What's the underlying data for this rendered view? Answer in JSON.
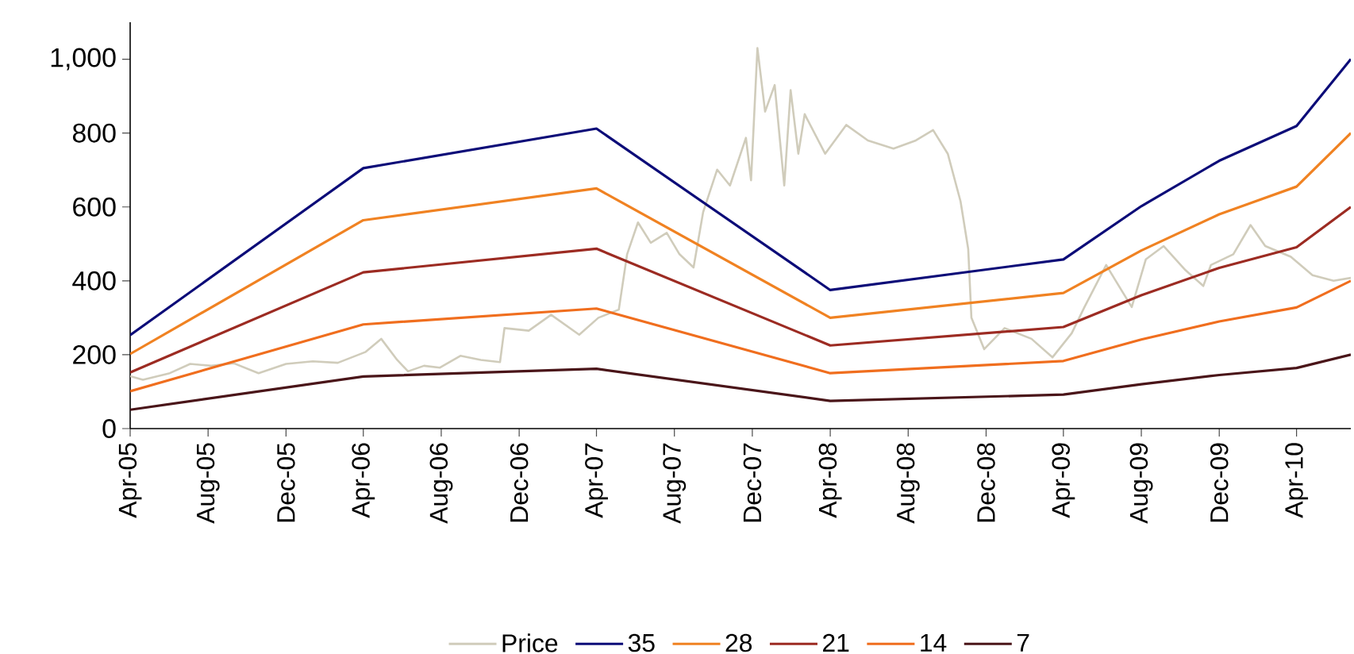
{
  "chart_data": {
    "type": "line",
    "xlim": [
      "2005-04-01",
      "2010-06-25"
    ],
    "xticks": [
      {
        "value": "2005-04-01",
        "label": "Apr-05"
      },
      {
        "value": "2005-08-01",
        "label": "Aug-05"
      },
      {
        "value": "2005-12-01",
        "label": "Dec-05"
      },
      {
        "value": "2006-04-01",
        "label": "Apr-06"
      },
      {
        "value": "2006-08-01",
        "label": "Aug-06"
      },
      {
        "value": "2006-12-01",
        "label": "Dec-06"
      },
      {
        "value": "2007-04-01",
        "label": "Apr-07"
      },
      {
        "value": "2007-08-01",
        "label": "Aug-07"
      },
      {
        "value": "2007-12-01",
        "label": "Dec-07"
      },
      {
        "value": "2008-04-01",
        "label": "Apr-08"
      },
      {
        "value": "2008-08-01",
        "label": "Aug-08"
      },
      {
        "value": "2008-12-01",
        "label": "Dec-08"
      },
      {
        "value": "2009-04-01",
        "label": "Apr-09"
      },
      {
        "value": "2009-08-01",
        "label": "Aug-09"
      },
      {
        "value": "2009-12-01",
        "label": "Dec-09"
      },
      {
        "value": "2010-04-01",
        "label": "Apr-10"
      }
    ],
    "ylim": [
      0,
      1100
    ],
    "yticks": [
      0,
      200,
      400,
      600,
      800,
      {
        "value": 1000,
        "label": "1,000"
      }
    ],
    "legend": "bottom",
    "series": [
      {
        "name": "Price",
        "color": "#d0ccbb",
        "x": [
          "2005-04-01",
          "2005-04-21",
          "2005-06-02",
          "2005-07-04",
          "2005-08-06",
          "2005-09-10",
          "2005-10-19",
          "2005-12-01",
          "2006-01-12",
          "2006-02-20",
          "2006-04-04",
          "2006-04-29",
          "2006-05-24",
          "2006-06-10",
          "2006-07-05",
          "2006-07-30",
          "2006-08-31",
          "2006-10-02",
          "2006-11-01",
          "2006-11-08",
          "2006-12-16",
          "2007-01-20",
          "2007-03-05",
          "2007-04-04",
          "2007-05-06",
          "2007-05-19",
          "2007-06-05",
          "2007-06-25",
          "2007-07-20",
          "2007-08-09",
          "2007-08-31",
          "2007-09-15",
          "2007-10-07",
          "2007-10-27",
          "2007-11-21",
          "2007-11-29",
          "2007-12-09",
          "2007-12-21",
          "2008-01-05",
          "2008-01-20",
          "2008-01-30",
          "2008-02-11",
          "2008-02-21",
          "2008-03-24",
          "2008-04-26",
          "2008-05-30",
          "2008-07-09",
          "2008-08-13",
          "2008-09-09",
          "2008-10-02",
          "2008-10-22",
          "2008-11-03",
          "2008-11-08",
          "2008-11-28",
          "2008-12-30",
          "2009-02-10",
          "2009-03-15",
          "2009-04-14",
          "2009-05-04",
          "2009-06-07",
          "2009-06-22",
          "2009-07-17",
          "2009-08-08",
          "2009-09-05",
          "2009-10-09",
          "2009-11-06",
          "2009-11-18",
          "2009-12-23",
          "2010-01-19",
          "2010-02-11",
          "2010-03-23",
          "2010-04-26",
          "2010-05-29",
          "2010-06-25"
        ],
        "values": [
          142,
          132,
          150,
          175,
          170,
          177,
          150,
          175,
          182,
          178,
          207,
          243,
          186,
          155,
          170,
          165,
          197,
          186,
          180,
          272,
          265,
          308,
          254,
          300,
          322,
          472,
          558,
          503,
          530,
          472,
          436,
          586,
          701,
          658,
          787,
          672,
          1030,
          858,
          930,
          658,
          916,
          744,
          851,
          744,
          822,
          780,
          758,
          780,
          808,
          744,
          615,
          486,
          300,
          215,
          272,
          243,
          193,
          258,
          329,
          443,
          400,
          329,
          458,
          494,
          429,
          386,
          443,
          472,
          551,
          494,
          465,
          415,
          400,
          408
        ]
      },
      {
        "name": "35",
        "color": "#0c0c78",
        "x": [
          "2005-04-01",
          "2006-04-01",
          "2007-04-01",
          "2008-04-01",
          "2009-04-01",
          "2009-08-01",
          "2009-12-01",
          "2010-04-01",
          "2010-06-25"
        ],
        "values": [
          253,
          705,
          812,
          375,
          458,
          602,
          725,
          819,
          1000
        ]
      },
      {
        "name": "28",
        "color": "#f08222",
        "x": [
          "2005-04-01",
          "2006-04-01",
          "2007-04-01",
          "2008-04-01",
          "2009-04-01",
          "2009-08-01",
          "2009-12-01",
          "2010-04-01",
          "2010-06-25"
        ],
        "values": [
          202,
          564,
          650,
          300,
          367,
          482,
          580,
          655,
          800
        ]
      },
      {
        "name": "21",
        "color": "#9c2b22",
        "x": [
          "2005-04-01",
          "2006-04-01",
          "2007-04-01",
          "2008-04-01",
          "2009-04-01",
          "2009-08-01",
          "2009-12-01",
          "2010-04-01",
          "2010-06-25"
        ],
        "values": [
          152,
          423,
          487,
          225,
          275,
          361,
          435,
          491,
          600
        ]
      },
      {
        "name": "14",
        "color": "#f06e1e",
        "x": [
          "2005-04-01",
          "2006-04-01",
          "2007-04-01",
          "2008-04-01",
          "2009-04-01",
          "2009-08-01",
          "2009-12-01",
          "2010-04-01",
          "2010-06-25"
        ],
        "values": [
          101,
          282,
          325,
          150,
          183,
          241,
          290,
          328,
          400
        ]
      },
      {
        "name": "7",
        "color": "#4a1519",
        "x": [
          "2005-04-01",
          "2006-04-01",
          "2007-04-01",
          "2008-04-01",
          "2009-04-01",
          "2009-08-01",
          "2009-12-01",
          "2010-04-01",
          "2010-06-25"
        ],
        "values": [
          51,
          141,
          162,
          75,
          92,
          120,
          145,
          164,
          200
        ]
      }
    ]
  }
}
